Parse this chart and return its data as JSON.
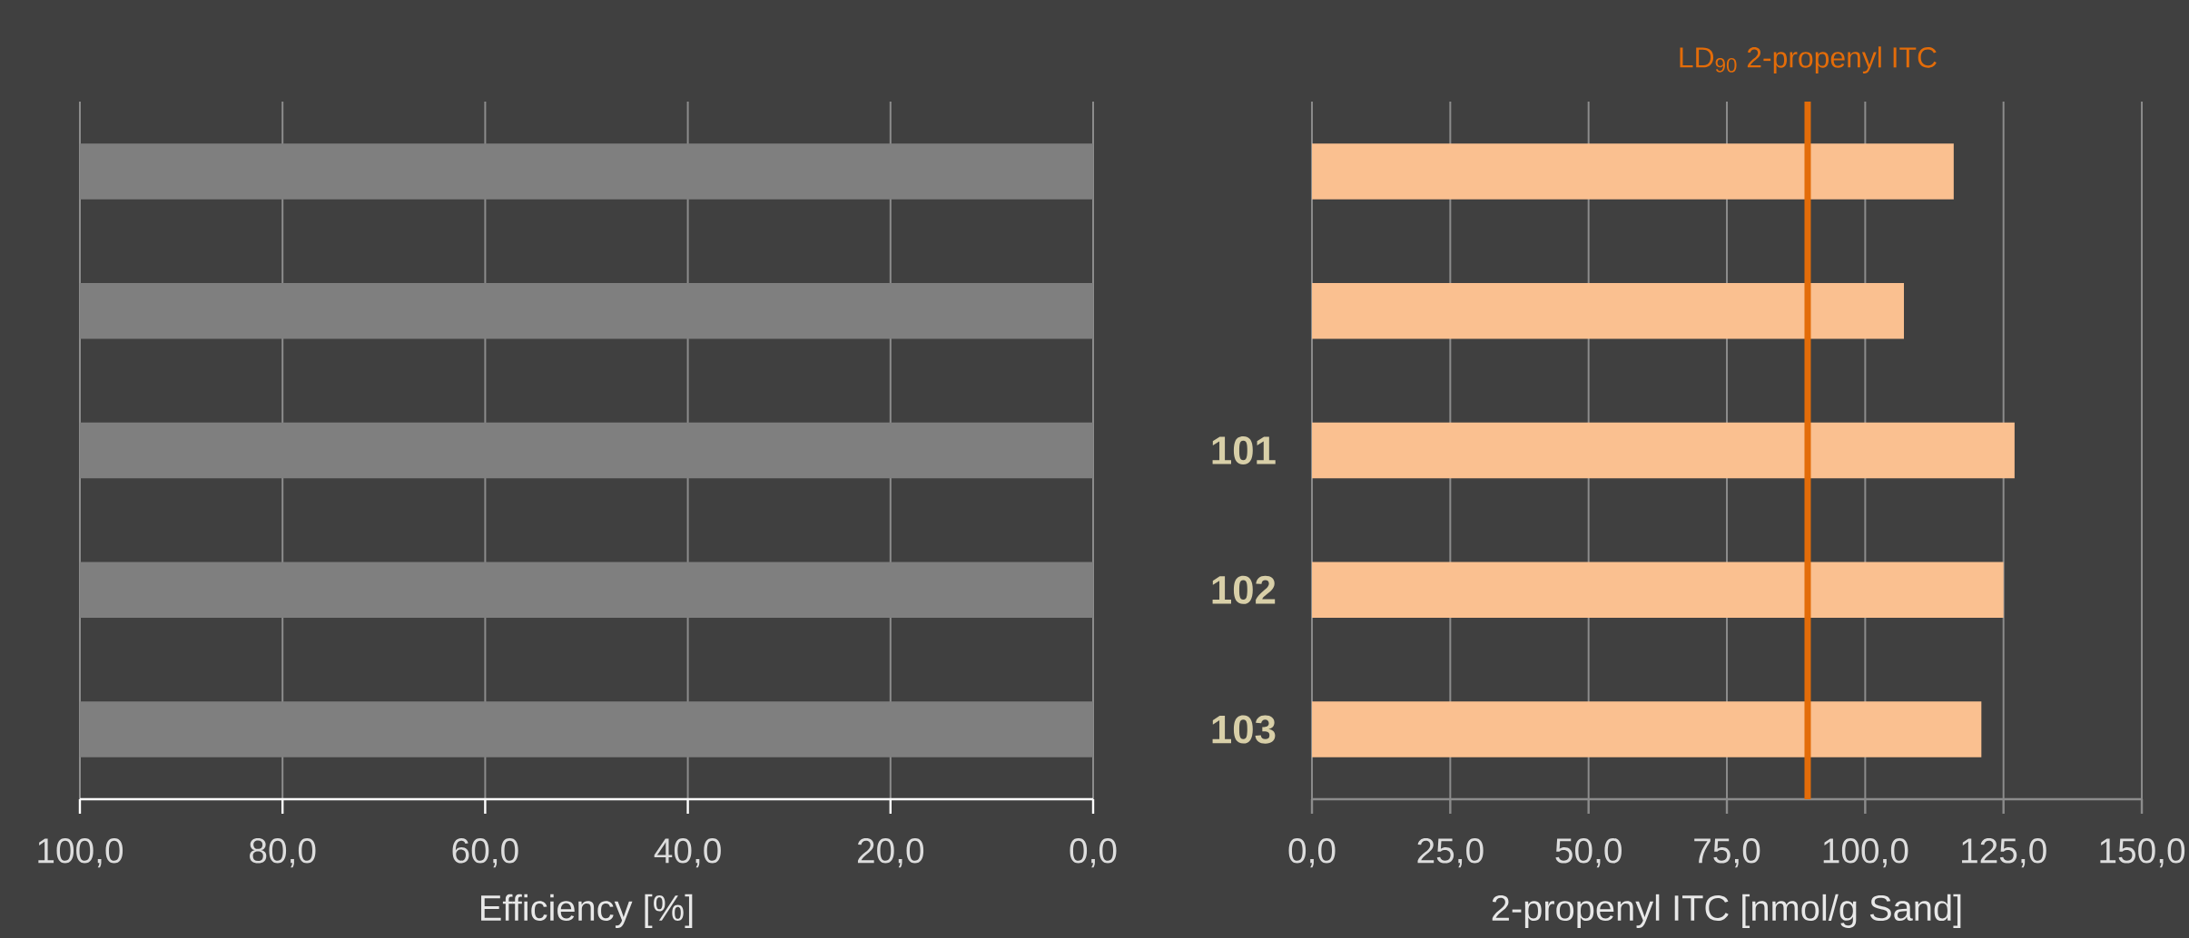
{
  "chart_data": [
    {
      "type": "bar",
      "orientation": "horizontal",
      "xlabel": "Efficiency [%]",
      "categories": [
        null,
        null,
        null,
        null,
        null
      ],
      "values": [
        100,
        100,
        100,
        100,
        100
      ],
      "color": "#7f7f7f",
      "xlim": [
        100,
        0
      ],
      "xticks": [
        {
          "value": 100,
          "label": "100,0"
        },
        {
          "value": 80,
          "label": "80,0"
        },
        {
          "value": 60,
          "label": "60,0"
        },
        {
          "value": 40,
          "label": "40,0"
        },
        {
          "value": 20,
          "label": "20,0"
        },
        {
          "value": 0,
          "label": "0,0"
        }
      ],
      "grid": "x"
    },
    {
      "type": "bar",
      "orientation": "horizontal",
      "xlabel": "2-propenyl ITC [nmol/g Sand]",
      "categories": [
        null,
        null,
        "101",
        "102",
        "103"
      ],
      "values": [
        116,
        107,
        127,
        125,
        121
      ],
      "color": "#fac090",
      "xlim": [
        0,
        150
      ],
      "xticks": [
        {
          "value": 0,
          "label": "0,0"
        },
        {
          "value": 25,
          "label": "25,0"
        },
        {
          "value": 50,
          "label": "50,0"
        },
        {
          "value": 75,
          "label": "75,0"
        },
        {
          "value": 100,
          "label": "100,0"
        },
        {
          "value": 125,
          "label": "125,0"
        },
        {
          "value": 150,
          "label": "150,0"
        }
      ],
      "grid": "x",
      "ref_lines": [
        {
          "axis": "x",
          "value": 89.6,
          "label": "LD$_{90}$ 2-propenyl ITC",
          "color": "#e36c09"
        }
      ]
    }
  ]
}
